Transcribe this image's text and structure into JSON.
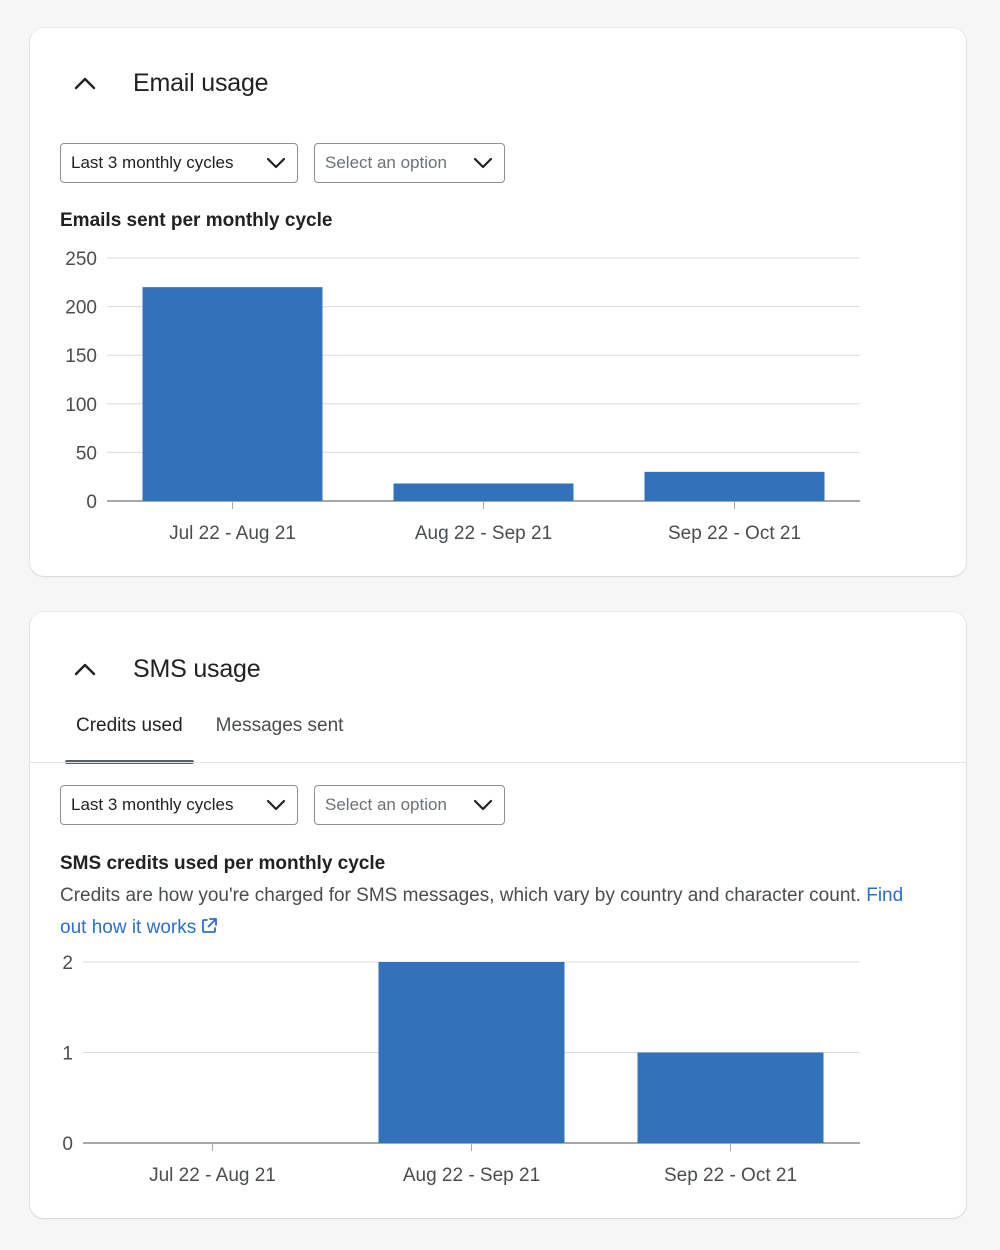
{
  "email_usage": {
    "title": "Email usage",
    "period_select": "Last 3 monthly cycles",
    "option_select_placeholder": "Select an option",
    "chart_title": "Emails sent per monthly cycle"
  },
  "sms_usage": {
    "title": "SMS usage",
    "tabs": [
      {
        "label": "Credits used",
        "selected": true
      },
      {
        "label": "Messages sent",
        "selected": false
      }
    ],
    "period_select": "Last 3 monthly cycles",
    "option_select_placeholder": "Select an option",
    "chart_title": "SMS credits used per monthly cycle",
    "description": "Credits are how you're charged for SMS messages, which vary by country and character count.",
    "link_text": "Find out how it works"
  },
  "colors": {
    "bar": "#3272bb",
    "link": "#2c6ecb",
    "gridline": "#dcdcdc",
    "axis": "#a8a8a8"
  },
  "icons": {
    "collapse": "chevron-up-icon",
    "select": "chevron-down-icon",
    "link": "external-link-icon"
  },
  "chart_data": [
    {
      "type": "bar",
      "title": "Emails sent per monthly cycle",
      "categories": [
        "Jul 22 - Aug 21",
        "Aug 22 - Sep 21",
        "Sep 22 - Oct 21"
      ],
      "values": [
        220,
        18,
        30
      ],
      "yticks": [
        0,
        50,
        100,
        150,
        200,
        250
      ],
      "ylim": [
        0,
        250
      ],
      "grid": true
    },
    {
      "type": "bar",
      "title": "SMS credits used per monthly cycle",
      "categories": [
        "Jul 22 - Aug 21",
        "Aug 22 - Sep 21",
        "Sep 22 - Oct 21"
      ],
      "values": [
        0,
        2,
        1
      ],
      "yticks": [
        0,
        1,
        2
      ],
      "ylim": [
        0,
        2
      ],
      "grid": true
    }
  ]
}
